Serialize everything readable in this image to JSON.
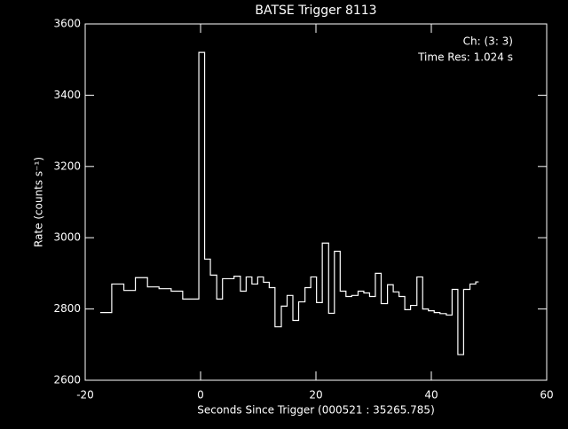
{
  "chart_data": {
    "type": "step",
    "title": "BATSE Trigger 8113",
    "xlabel": "Seconds Since Trigger (000521 : 35265.785)",
    "ylabel": "Rate (counts s⁻¹)",
    "annotations": [
      "Ch: (3: 3)",
      "Time Res: 1.024 s"
    ],
    "color": "#ffffff",
    "x": [
      -17.4,
      -15.4,
      -13.3,
      -11.3,
      -9.2,
      -7.2,
      -5.1,
      -3.1,
      -0.3,
      0.7,
      1.7,
      2.8,
      3.8,
      5.8,
      6.9,
      7.9,
      8.9,
      9.9,
      10.9,
      11.9,
      12.9,
      14.0,
      15.0,
      16.0,
      17.0,
      18.1,
      19.1,
      20.1,
      21.1,
      22.2,
      23.2,
      24.2,
      25.2,
      26.2,
      27.3,
      28.3,
      29.3,
      30.3,
      31.3,
      32.4,
      33.4,
      34.4,
      35.4,
      36.4,
      37.5,
      38.5,
      39.5,
      40.5,
      41.5,
      42.6,
      43.6,
      44.6,
      45.6,
      46.7,
      47.7,
      48.2
    ],
    "values": [
      2790,
      2870,
      2852,
      2888,
      2862,
      2857,
      2850,
      2828,
      3520,
      2940,
      2895,
      2828,
      2885,
      2892,
      2850,
      2890,
      2870,
      2890,
      2875,
      2860,
      2750,
      2808,
      2838,
      2768,
      2820,
      2860,
      2890,
      2818,
      2985,
      2788,
      2962,
      2850,
      2835,
      2838,
      2850,
      2845,
      2835,
      2900,
      2815,
      2868,
      2848,
      2835,
      2798,
      2810,
      2890,
      2800,
      2795,
      2790,
      2787,
      2783,
      2855,
      2672,
      2855,
      2870,
      2876,
      2876
    ],
    "xlim": [
      -20,
      60
    ],
    "xticks": [
      -20,
      0,
      20,
      40,
      60
    ],
    "ylim": [
      2600,
      3600
    ],
    "yticks": [
      2600,
      2800,
      3000,
      3200,
      3400,
      3600
    ]
  }
}
